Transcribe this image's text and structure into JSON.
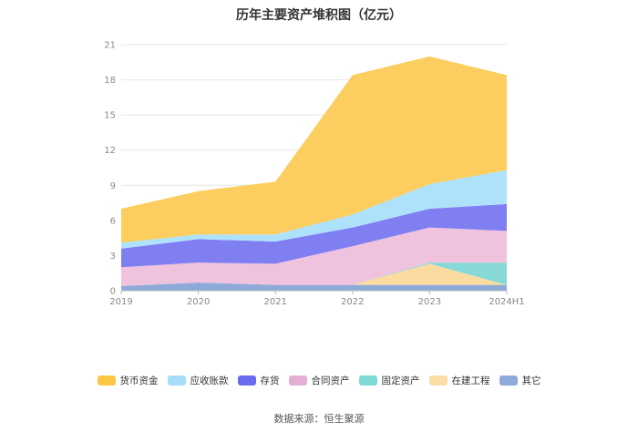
{
  "chart_data": {
    "type": "area",
    "stacked": true,
    "title": "历年主要资产堆积图（亿元）",
    "source": "数据来源：恒生聚源",
    "categories": [
      "2019",
      "2020",
      "2021",
      "2022",
      "2023",
      "2024H1"
    ],
    "ylim": [
      0,
      21
    ],
    "yticks": [
      0,
      3,
      6,
      9,
      12,
      15,
      18,
      21
    ],
    "grid": true,
    "legend_position": "bottom",
    "series": [
      {
        "name": "其它",
        "color": "#8eaadb",
        "values": [
          0.4,
          0.7,
          0.5,
          0.5,
          0.5,
          0.5
        ]
      },
      {
        "name": "在建工程",
        "color": "#fbdba0",
        "values": [
          0.0,
          0.0,
          0.0,
          0.0,
          1.8,
          0.0
        ]
      },
      {
        "name": "固定资产",
        "color": "#86d9d6",
        "values": [
          0.0,
          0.0,
          0.0,
          0.0,
          0.1,
          1.9
        ]
      },
      {
        "name": "合同资产",
        "color": "#efc3de",
        "values": [
          1.6,
          1.7,
          1.8,
          3.3,
          3.0,
          2.7
        ]
      },
      {
        "name": "存货",
        "color": "#7f7ff2",
        "values": [
          1.6,
          2.0,
          1.9,
          1.6,
          1.6,
          2.3
        ]
      },
      {
        "name": "应收账款",
        "color": "#aee2fb",
        "values": [
          0.5,
          0.4,
          0.6,
          1.1,
          2.1,
          2.9
        ]
      },
      {
        "name": "货币资金",
        "color": "#fbce5f",
        "values": [
          2.9,
          3.7,
          4.5,
          11.9,
          10.9,
          8.1
        ]
      }
    ]
  },
  "legend": [
    {
      "name": "货币资金",
      "color": "#fbc646"
    },
    {
      "name": "应收账款",
      "color": "#a6dcf9"
    },
    {
      "name": "存货",
      "color": "#6b6bf0"
    },
    {
      "name": "合同资产",
      "color": "#e5aed3"
    },
    {
      "name": "固定资产",
      "color": "#7ed8d4"
    },
    {
      "name": "在建工程",
      "color": "#fbdca5"
    },
    {
      "name": "其它",
      "color": "#8eaadb"
    }
  ]
}
